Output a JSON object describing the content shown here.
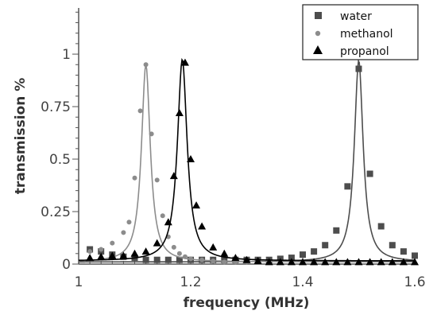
{
  "chart_data": {
    "type": "scatter",
    "xlabel": "frequency (MHz)",
    "ylabel": "transmission %",
    "xlim": [
      1.0,
      1.6
    ],
    "ylim": [
      0,
      1.22
    ],
    "x_ticks": [
      1,
      1.2,
      1.4,
      1.6
    ],
    "x_tick_labels": [
      "1",
      "1.2",
      "1.4",
      "1.6"
    ],
    "y_ticks": [
      0,
      0.25,
      0.5,
      0.75,
      1
    ],
    "y_tick_labels": [
      "0",
      "0.25",
      "0.5",
      "0.75",
      "1"
    ],
    "grid": false,
    "legend_position": "top-right",
    "series": [
      {
        "name": "water",
        "marker": "square",
        "color": "#4d4d4d",
        "x": [
          1.02,
          1.04,
          1.06,
          1.08,
          1.1,
          1.12,
          1.14,
          1.16,
          1.18,
          1.2,
          1.22,
          1.24,
          1.26,
          1.28,
          1.3,
          1.32,
          1.34,
          1.36,
          1.38,
          1.4,
          1.42,
          1.44,
          1.46,
          1.48,
          1.5,
          1.52,
          1.54,
          1.56,
          1.58,
          1.6
        ],
        "y": [
          0.07,
          0.06,
          0.045,
          0.035,
          0.03,
          0.02,
          0.02,
          0.02,
          0.02,
          0.02,
          0.02,
          0.02,
          0.02,
          0.02,
          0.02,
          0.02,
          0.02,
          0.025,
          0.03,
          0.045,
          0.06,
          0.09,
          0.16,
          0.37,
          0.93,
          0.43,
          0.18,
          0.09,
          0.06,
          0.04
        ],
        "fit": {
          "center": 1.5,
          "peak": 0.96,
          "width": 0.0095,
          "baseline": 0.01
        }
      },
      {
        "name": "methanol",
        "marker": "circle",
        "color": "#8c8c8c",
        "x": [
          1.02,
          1.04,
          1.06,
          1.08,
          1.09,
          1.1,
          1.11,
          1.12,
          1.13,
          1.14,
          1.15,
          1.16,
          1.17,
          1.18,
          1.19,
          1.2,
          1.22,
          1.24,
          1.26,
          1.28,
          1.3
        ],
        "y": [
          0.06,
          0.07,
          0.1,
          0.15,
          0.2,
          0.41,
          0.73,
          0.95,
          0.62,
          0.4,
          0.23,
          0.13,
          0.08,
          0.05,
          0.035,
          0.025,
          0.02,
          0.015,
          0.01,
          0.01,
          0.01
        ],
        "fit": {
          "center": 1.12,
          "peak": 0.94,
          "width": 0.0095,
          "baseline": 0.01
        }
      },
      {
        "name": "propanol",
        "marker": "triangle",
        "color": "#000000",
        "x": [
          1.02,
          1.04,
          1.06,
          1.08,
          1.1,
          1.12,
          1.14,
          1.16,
          1.17,
          1.18,
          1.19,
          1.2,
          1.21,
          1.22,
          1.24,
          1.26,
          1.28,
          1.3,
          1.32,
          1.34,
          1.36,
          1.38,
          1.4,
          1.42,
          1.44,
          1.46,
          1.48,
          1.5,
          1.52,
          1.54,
          1.56,
          1.58,
          1.6
        ],
        "y": [
          0.03,
          0.035,
          0.04,
          0.04,
          0.05,
          0.06,
          0.1,
          0.2,
          0.42,
          0.72,
          0.96,
          0.5,
          0.28,
          0.18,
          0.08,
          0.05,
          0.03,
          0.02,
          0.015,
          0.01,
          0.01,
          0.01,
          0.01,
          0.01,
          0.01,
          0.01,
          0.01,
          0.01,
          0.01,
          0.01,
          0.01,
          0.01,
          0.01
        ],
        "fit": {
          "center": 1.185,
          "peak": 0.96,
          "width": 0.0105,
          "baseline": 0.015
        }
      }
    ]
  }
}
